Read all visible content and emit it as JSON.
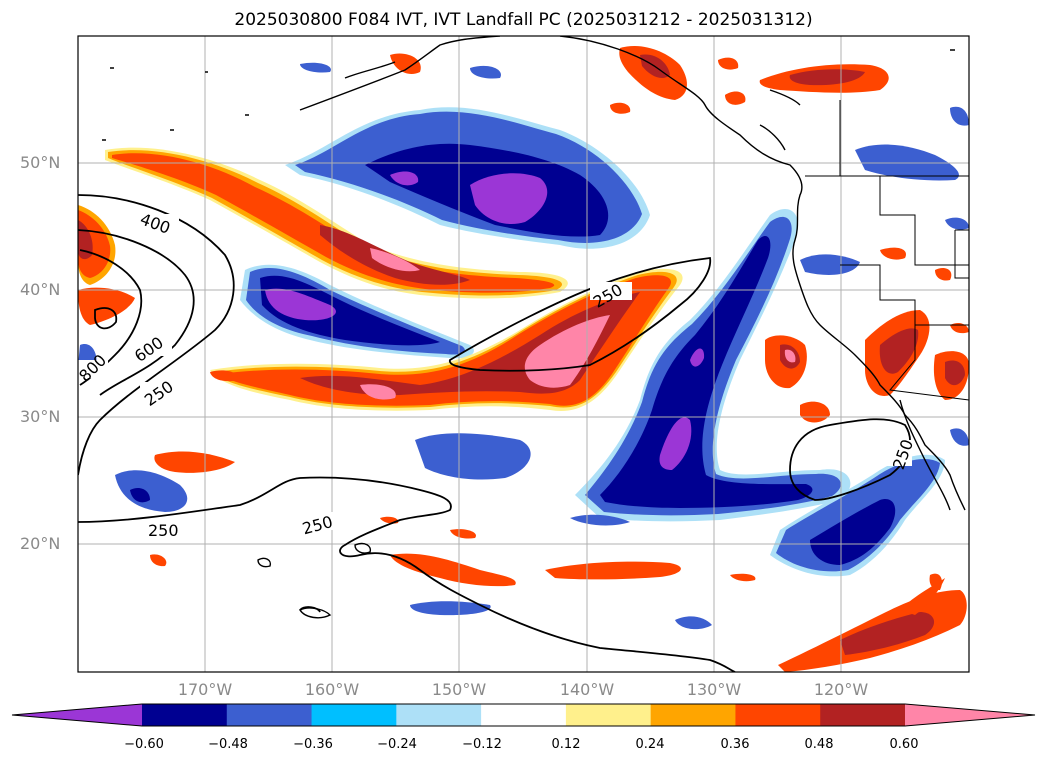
{
  "title": "2025030800 F084 IVT, IVT Landfall PC (2025031212 - 2025031312)",
  "lat_labels": [
    "50°N",
    "40°N",
    "30°N",
    "20°N"
  ],
  "lon_labels": [
    "170°W",
    "160°W",
    "150°W",
    "140°W",
    "130°W",
    "120°W"
  ],
  "colorbar": {
    "colors": [
      "#9b36d6",
      "#000091",
      "#3c5fd0",
      "#00bfff",
      "#ade0f7",
      "#ffffff",
      "#fff08c",
      "#ffa500",
      "#ff4500",
      "#b22222",
      "#ff85a8"
    ],
    "tick_labels": [
      "−0.60",
      "−0.48",
      "−0.36",
      "−0.24",
      "−0.12",
      "0.12",
      "0.24",
      "0.36",
      "0.48",
      "0.60"
    ],
    "extend": "both"
  },
  "contour_labels": [
    "400",
    "600",
    "800",
    "250",
    "250",
    "250",
    "250",
    "250"
  ],
  "colors": {
    "gridline": "#b0b0b0",
    "coast": "#000000",
    "contour": "#000000"
  }
}
